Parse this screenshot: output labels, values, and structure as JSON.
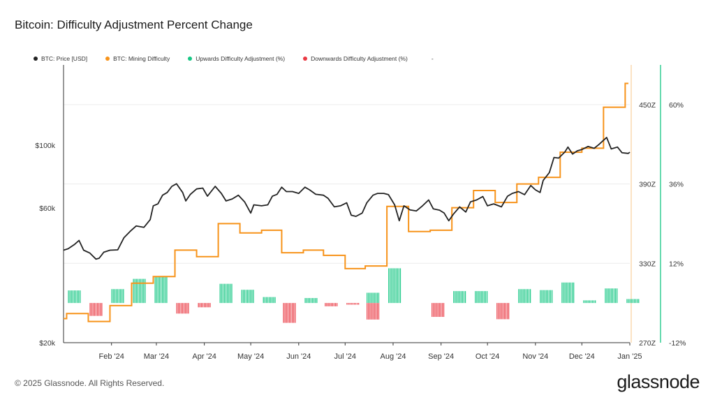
{
  "title": "Bitcoin: Difficulty Adjustment Percent Change",
  "legend": [
    {
      "label": "BTC: Price [USD]",
      "color": "#222222"
    },
    {
      "label": "BTC: Mining Difficulty",
      "color": "#f7931a"
    },
    {
      "label": "Upwards Difficulty Adjustment (%)",
      "color": "#16c784"
    },
    {
      "label": "Downwards Difficulty Adjustment (%)",
      "color": "#ea3943"
    }
  ],
  "legend_extra": "-",
  "footer": "© 2025 Glassnode. All Rights Reserved.",
  "brand": "glassnode",
  "chart_data": {
    "type": "line",
    "x_labels": [
      "Feb '24",
      "Mar '24",
      "Apr '24",
      "May '24",
      "Jun '24",
      "Jul '24",
      "Aug '24",
      "Sep '24",
      "Oct '24",
      "Nov '24",
      "Dec '24",
      "Jan '25"
    ],
    "x_range": [
      "2024-01-01",
      "2025-01-01"
    ],
    "price_axis": {
      "ticks": [
        20000,
        60000,
        100000
      ],
      "labels": [
        "$20k",
        "$60k",
        "$100k"
      ],
      "scale": "log"
    },
    "difficulty_axis": {
      "ticks": [
        270,
        330,
        390,
        450
      ],
      "labels": [
        "270Z",
        "330Z",
        "390Z",
        "450Z"
      ],
      "range": [
        270,
        480
      ]
    },
    "pct_axis": {
      "ticks": [
        -12,
        12,
        36,
        60
      ],
      "labels": [
        "-12%",
        "12%",
        "36%",
        "60%"
      ],
      "range": [
        -12,
        72
      ]
    },
    "series": [
      {
        "name": "BTC: Price [USD]",
        "color": "#222222",
        "axis": "price",
        "points": [
          [
            "2024-01-01",
            42500
          ],
          [
            "2024-01-04",
            43000
          ],
          [
            "2024-01-08",
            44500
          ],
          [
            "2024-01-11",
            46000
          ],
          [
            "2024-01-14",
            42500
          ],
          [
            "2024-01-18",
            41500
          ],
          [
            "2024-01-22",
            39500
          ],
          [
            "2024-01-24",
            39800
          ],
          [
            "2024-01-27",
            41800
          ],
          [
            "2024-01-31",
            42500
          ],
          [
            "2024-02-05",
            42600
          ],
          [
            "2024-02-09",
            47000
          ],
          [
            "2024-02-13",
            49500
          ],
          [
            "2024-02-17",
            51800
          ],
          [
            "2024-02-22",
            51200
          ],
          [
            "2024-02-26",
            54500
          ],
          [
            "2024-02-28",
            61000
          ],
          [
            "2024-03-02",
            62000
          ],
          [
            "2024-03-05",
            66500
          ],
          [
            "2024-03-08",
            68000
          ],
          [
            "2024-03-11",
            71500
          ],
          [
            "2024-03-14",
            73000
          ],
          [
            "2024-03-18",
            68000
          ],
          [
            "2024-03-20",
            63500
          ],
          [
            "2024-03-23",
            67000
          ],
          [
            "2024-03-27",
            70000
          ],
          [
            "2024-03-31",
            70500
          ],
          [
            "2024-04-03",
            66000
          ],
          [
            "2024-04-08",
            71500
          ],
          [
            "2024-04-12",
            67500
          ],
          [
            "2024-04-15",
            63500
          ],
          [
            "2024-04-19",
            64500
          ],
          [
            "2024-04-23",
            66500
          ],
          [
            "2024-04-27",
            63000
          ],
          [
            "2024-05-01",
            57500
          ],
          [
            "2024-05-03",
            61500
          ],
          [
            "2024-05-08",
            61000
          ],
          [
            "2024-05-12",
            61500
          ],
          [
            "2024-05-15",
            66000
          ],
          [
            "2024-05-18",
            67000
          ],
          [
            "2024-05-21",
            71000
          ],
          [
            "2024-05-24",
            68500
          ],
          [
            "2024-05-28",
            68500
          ],
          [
            "2024-06-01",
            67500
          ],
          [
            "2024-06-05",
            71000
          ],
          [
            "2024-06-08",
            69500
          ],
          [
            "2024-06-12",
            67000
          ],
          [
            "2024-06-17",
            66500
          ],
          [
            "2024-06-20",
            64800
          ],
          [
            "2024-06-24",
            60500
          ],
          [
            "2024-06-28",
            61000
          ],
          [
            "2024-07-02",
            62500
          ],
          [
            "2024-07-05",
            56500
          ],
          [
            "2024-07-08",
            56000
          ],
          [
            "2024-07-12",
            57500
          ],
          [
            "2024-07-15",
            62500
          ],
          [
            "2024-07-19",
            66500
          ],
          [
            "2024-07-22",
            67500
          ],
          [
            "2024-07-26",
            67500
          ],
          [
            "2024-07-29",
            66800
          ],
          [
            "2024-08-02",
            61500
          ],
          [
            "2024-08-05",
            54000
          ],
          [
            "2024-08-08",
            61000
          ],
          [
            "2024-08-12",
            59000
          ],
          [
            "2024-08-16",
            58500
          ],
          [
            "2024-08-20",
            61000
          ],
          [
            "2024-08-24",
            64000
          ],
          [
            "2024-08-27",
            59500
          ],
          [
            "2024-08-31",
            58900
          ],
          [
            "2024-09-03",
            57500
          ],
          [
            "2024-09-06",
            54000
          ],
          [
            "2024-09-09",
            57000
          ],
          [
            "2024-09-13",
            60500
          ],
          [
            "2024-09-17",
            58000
          ],
          [
            "2024-09-20",
            63000
          ],
          [
            "2024-09-24",
            64000
          ],
          [
            "2024-09-28",
            65800
          ],
          [
            "2024-10-01",
            61000
          ],
          [
            "2024-10-05",
            62000
          ],
          [
            "2024-10-10",
            60500
          ],
          [
            "2024-10-14",
            66000
          ],
          [
            "2024-10-17",
            67500
          ],
          [
            "2024-10-21",
            68500
          ],
          [
            "2024-10-25",
            66800
          ],
          [
            "2024-10-29",
            72000
          ],
          [
            "2024-11-01",
            69500
          ],
          [
            "2024-11-04",
            68000
          ],
          [
            "2024-11-06",
            75000
          ],
          [
            "2024-11-10",
            80000
          ],
          [
            "2024-11-13",
            90500
          ],
          [
            "2024-11-16",
            90000
          ],
          [
            "2024-11-20",
            94500
          ],
          [
            "2024-11-22",
            98500
          ],
          [
            "2024-11-25",
            93000
          ],
          [
            "2024-11-28",
            95500
          ],
          [
            "2024-12-01",
            96500
          ],
          [
            "2024-12-05",
            99000
          ],
          [
            "2024-12-09",
            97500
          ],
          [
            "2024-12-12",
            100500
          ],
          [
            "2024-12-17",
            106500
          ],
          [
            "2024-12-20",
            97000
          ],
          [
            "2024-12-24",
            98500
          ],
          [
            "2024-12-27",
            94000
          ],
          [
            "2024-12-31",
            93500
          ],
          [
            "2025-01-01",
            94400
          ]
        ]
      },
      {
        "name": "BTC: Mining Difficulty",
        "color": "#f7931a",
        "axis": "difficulty",
        "steps": [
          [
            "2024-01-01",
            288.2
          ],
          [
            "2024-01-03",
            292
          ],
          [
            "2024-01-17",
            286
          ],
          [
            "2024-01-31",
            298
          ],
          [
            "2024-02-14",
            315
          ],
          [
            "2024-02-28",
            320
          ],
          [
            "2024-03-13",
            340
          ],
          [
            "2024-03-27",
            335
          ],
          [
            "2024-04-10",
            360
          ],
          [
            "2024-04-24",
            353
          ],
          [
            "2024-05-08",
            355
          ],
          [
            "2024-05-21",
            338
          ],
          [
            "2024-06-04",
            340
          ],
          [
            "2024-06-17",
            336
          ],
          [
            "2024-07-01",
            326
          ],
          [
            "2024-07-14",
            328
          ],
          [
            "2024-07-28",
            373
          ],
          [
            "2024-08-11",
            354
          ],
          [
            "2024-08-25",
            355
          ],
          [
            "2024-09-08",
            372
          ],
          [
            "2024-09-22",
            385
          ],
          [
            "2024-10-06",
            376
          ],
          [
            "2024-10-20",
            390
          ],
          [
            "2024-11-03",
            395
          ],
          [
            "2024-11-17",
            414
          ],
          [
            "2024-12-01",
            417
          ],
          [
            "2024-12-15",
            448
          ],
          [
            "2024-12-29",
            466
          ]
        ]
      },
      {
        "name": "Upwards Difficulty Adjustment (%)",
        "color": "#16c784",
        "axis": "pct",
        "bars": [
          [
            "2024-01-03",
            3.8
          ],
          [
            "2024-01-31",
            4.2
          ],
          [
            "2024-02-14",
            7.3
          ],
          [
            "2024-02-28",
            7.9
          ],
          [
            "2024-04-10",
            5.8
          ],
          [
            "2024-04-24",
            4.0
          ],
          [
            "2024-05-08",
            1.8
          ],
          [
            "2024-06-04",
            1.5
          ],
          [
            "2024-07-14",
            3.1
          ],
          [
            "2024-07-28",
            10.5
          ],
          [
            "2024-09-08",
            3.6
          ],
          [
            "2024-09-22",
            3.6
          ],
          [
            "2024-10-20",
            4.2
          ],
          [
            "2024-11-03",
            3.9
          ],
          [
            "2024-11-17",
            6.2
          ],
          [
            "2024-12-01",
            0.8
          ],
          [
            "2024-12-15",
            4.4
          ],
          [
            "2024-12-29",
            1.2
          ]
        ]
      },
      {
        "name": "Downwards Difficulty Adjustment (%)",
        "color": "#ea3943",
        "axis": "pct",
        "bars": [
          [
            "2024-01-17",
            -3.9
          ],
          [
            "2024-03-13",
            -3.2
          ],
          [
            "2024-03-27",
            -1.3
          ],
          [
            "2024-05-21",
            -6.0
          ],
          [
            "2024-06-17",
            -1.0
          ],
          [
            "2024-07-01",
            -0.5
          ],
          [
            "2024-07-14",
            -5.0
          ],
          [
            "2024-08-25",
            -4.2
          ],
          [
            "2024-10-06",
            -4.9
          ]
        ]
      }
    ]
  }
}
